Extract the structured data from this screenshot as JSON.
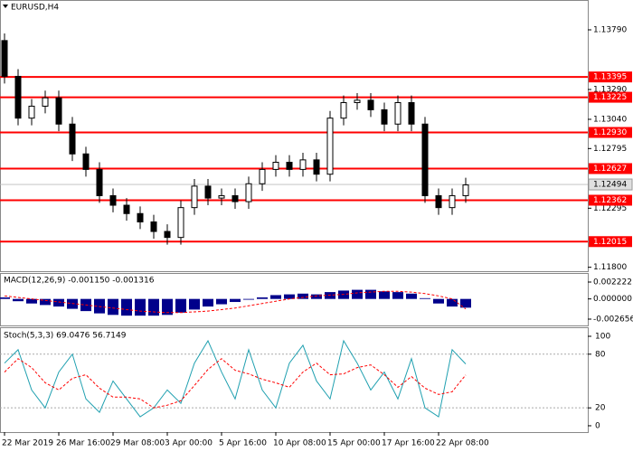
{
  "chart_data": [
    {
      "type": "candlestick",
      "title": "EURUSD,H4",
      "categories": [
        "22 Mar 2019",
        null,
        null,
        null,
        "26 Mar 16:00",
        null,
        null,
        null,
        "29 Mar 08:00",
        null,
        null,
        null,
        "3 Apr 00:00",
        null,
        null,
        null,
        "5 Apr 16:00",
        null,
        null,
        null,
        "10 Apr 08:00",
        null,
        null,
        null,
        "15 Apr 00:00",
        null,
        null,
        null,
        "17 Apr 16:00",
        null,
        null,
        null,
        "22 Apr 08:00",
        null,
        null
      ],
      "open": [
        1.137,
        1.134,
        1.1305,
        1.1315,
        1.1322,
        1.13,
        1.1275,
        1.1262,
        1.124,
        1.1232,
        1.1225,
        1.1218,
        1.121,
        1.1205,
        1.123,
        1.1248,
        1.1238,
        1.124,
        1.1235,
        1.125,
        1.1262,
        1.1268,
        1.1262,
        1.127,
        1.1258,
        1.1305,
        1.1318,
        1.132,
        1.1312,
        1.13,
        1.1318,
        1.13,
        1.124,
        1.123,
        1.124
      ],
      "high": [
        1.1376,
        1.1346,
        1.1321,
        1.1328,
        1.1328,
        1.1306,
        1.1281,
        1.1268,
        1.1246,
        1.1238,
        1.1231,
        1.1224,
        1.1216,
        1.1236,
        1.1254,
        1.1254,
        1.1246,
        1.1246,
        1.1256,
        1.1268,
        1.1274,
        1.1274,
        1.1276,
        1.1276,
        1.1311,
        1.1324,
        1.1326,
        1.1326,
        1.1318,
        1.1324,
        1.1324,
        1.1306,
        1.1246,
        1.1246,
        1.1255
      ],
      "low": [
        1.1334,
        1.1299,
        1.1299,
        1.1309,
        1.1294,
        1.1269,
        1.1256,
        1.1234,
        1.1226,
        1.1219,
        1.1212,
        1.1204,
        1.1199,
        1.1199,
        1.1224,
        1.1232,
        1.1232,
        1.1229,
        1.1229,
        1.1244,
        1.1256,
        1.1256,
        1.1256,
        1.1252,
        1.1252,
        1.1299,
        1.1312,
        1.1306,
        1.1294,
        1.1294,
        1.1294,
        1.1234,
        1.1224,
        1.1224,
        1.1234
      ],
      "close": [
        1.134,
        1.1305,
        1.1315,
        1.1322,
        1.13,
        1.1275,
        1.1262,
        1.124,
        1.1232,
        1.1225,
        1.1218,
        1.121,
        1.1205,
        1.123,
        1.1248,
        1.1238,
        1.124,
        1.1235,
        1.125,
        1.1262,
        1.1268,
        1.1262,
        1.127,
        1.1258,
        1.1305,
        1.1318,
        1.132,
        1.1312,
        1.13,
        1.1318,
        1.13,
        1.124,
        1.123,
        1.124,
        1.1249
      ],
      "color": "#000000",
      "ylim": [
        1.11767,
        1.1404
      ],
      "yticks": [
        {
          "value": 1.1379,
          "label": "1.13790"
        },
        {
          "value": 1.1329,
          "label": "1.13290"
        },
        {
          "value": 1.1304,
          "label": "1.13040"
        },
        {
          "value": 1.12795,
          "label": "1.12795"
        },
        {
          "value": 1.12295,
          "label": "1.12295"
        },
        {
          "value": 1.118,
          "label": "1.11800"
        }
      ],
      "levels": [
        {
          "value": 1.13395,
          "label": "1.13395"
        },
        {
          "value": 1.13225,
          "label": "1.13225"
        },
        {
          "value": 1.1293,
          "label": "1.12930"
        },
        {
          "value": 1.12627,
          "label": "1.12627"
        },
        {
          "value": 1.12362,
          "label": "1.12362"
        },
        {
          "value": 1.12015,
          "label": "1.12015"
        }
      ],
      "level_color": "#ff0000",
      "last_price": {
        "value": 1.12494,
        "label": "1.12494"
      }
    },
    {
      "type": "bar",
      "title": "MACD(12,26,9) -0.001150 -0.001316",
      "series": [
        {
          "color": "#00008b",
          "type": "bar",
          "values": [
            0.0002,
            -0.0003,
            -0.0006,
            -0.0008,
            -0.001,
            -0.0013,
            -0.0016,
            -0.0019,
            -0.0021,
            -0.0022,
            -0.0022,
            -0.0022,
            -0.0021,
            -0.0018,
            -0.0014,
            -0.001,
            -0.0007,
            -0.0004,
            -0.0001,
            0.0002,
            0.0005,
            0.0006,
            0.0007,
            0.0006,
            0.0009,
            0.0011,
            0.0012,
            0.0012,
            0.001,
            0.0009,
            0.0007,
            0.0001,
            -0.0006,
            -0.001,
            -0.00115
          ]
        },
        {
          "color": "#ff0000",
          "type": "line",
          "dash": true,
          "values": [
            0.0004,
            0.0002,
            0.0,
            -0.0002,
            -0.0004,
            -0.0006,
            -0.0008,
            -0.001,
            -0.0012,
            -0.0014,
            -0.0016,
            -0.0017,
            -0.0018,
            -0.0018,
            -0.0017,
            -0.0016,
            -0.0014,
            -0.0012,
            -0.0009,
            -0.0006,
            -0.0003,
            0.0,
            0.0002,
            0.0004,
            0.0005,
            0.0006,
            0.0008,
            0.0009,
            0.001,
            0.001,
            0.0009,
            0.0007,
            0.0004,
            0.0,
            -0.001316
          ]
        }
      ],
      "ylim": [
        -0.003489,
        0.003412
      ],
      "yticks": [
        {
          "value": 0.002222,
          "label": "0.002222"
        },
        {
          "value": 0,
          "label": "0.000000"
        },
        {
          "value": -0.002656,
          "label": "-0.002656"
        }
      ]
    },
    {
      "type": "line",
      "title": "Stoch(5,3,3) 69.0476 56.7149",
      "series": [
        {
          "color": "#20a0b0",
          "values": [
            70,
            85,
            40,
            20,
            60,
            80,
            30,
            15,
            50,
            30,
            10,
            20,
            40,
            25,
            70,
            95,
            60,
            30,
            85,
            40,
            20,
            70,
            90,
            50,
            30,
            95,
            70,
            40,
            60,
            30,
            75,
            20,
            10,
            85,
            69.0476
          ]
        },
        {
          "color": "#ff0000",
          "dash": true,
          "values": [
            60,
            75,
            65,
            48,
            40,
            53,
            57,
            42,
            32,
            32,
            30,
            20,
            23,
            28,
            45,
            63,
            75,
            62,
            58,
            52,
            48,
            43,
            60,
            70,
            57,
            58,
            65,
            68,
            57,
            43,
            55,
            42,
            35,
            38,
            56.7149
          ]
        }
      ],
      "ylim": [
        -7.1,
        110.1
      ],
      "yticks": [
        100,
        80,
        20,
        0
      ],
      "levels": [
        80,
        20
      ]
    }
  ]
}
